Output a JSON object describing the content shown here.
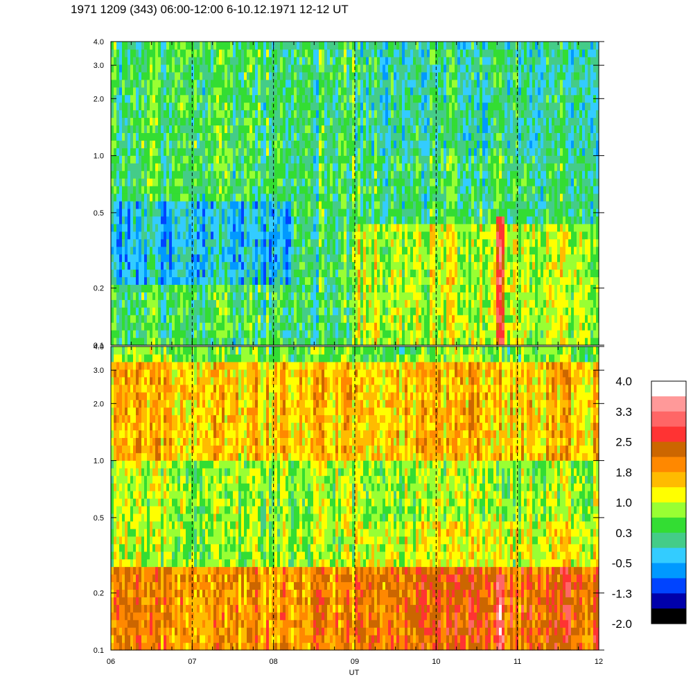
{
  "title": "1971 1209 (343) 06:00-12:00 6-10.12.1971  12-12 UT",
  "chart_data": {
    "type": "heatmap",
    "title": "1971 1209 (343) 06:00-12:00 6-10.12.1971  12-12 UT",
    "xlabel": "UT",
    "x_ticks": [
      "06",
      "07",
      "08",
      "09",
      "10",
      "11",
      "12"
    ],
    "x_range": [
      6,
      12
    ],
    "dashed_gridlines_at": [
      7,
      8,
      9,
      10,
      11
    ],
    "y_scale": "log",
    "y_range": [
      0.1,
      4.0
    ],
    "y_ticks": [
      0.1,
      0.2,
      0.5,
      1.0,
      2.0,
      3.0,
      4.0
    ],
    "y_tick_labels": [
      "0.1",
      "0.2",
      "0.5",
      "1.0",
      "2.0",
      "3.0",
      "4.0"
    ],
    "panels": [
      {
        "position": "top",
        "dominant_level": 0.3,
        "features": [
          "low values (-0.5 to -1.3) around 0.2-0.6 between 06 and 08",
          "elevated values (1.0-1.8) near 0.1-0.4 after 09",
          "peak ~2.5 at about 10.8 UT below 0.5"
        ]
      },
      {
        "position": "bottom",
        "dominant_level": 1.5,
        "features": [
          "values 1.8-2.5 below 0.3 throughout",
          "yellow-green (0.3-1.0) band between 0.3 and 1.0",
          "peak ~3.3 at about 10.8 UT below 0.25"
        ]
      }
    ],
    "colorbar": {
      "labels": [
        "4.0",
        "3.3",
        "2.5",
        "1.8",
        "1.0",
        "0.3",
        "-0.5",
        "-1.3",
        "-2.0"
      ],
      "colors_top_to_bottom": [
        "#ffffff",
        "#ff9999",
        "#ff6666",
        "#ff3333",
        "#cc6600",
        "#ff8800",
        "#ffbb00",
        "#ffff00",
        "#99ff33",
        "#33dd33",
        "#44cc88",
        "#33ccff",
        "#0099ff",
        "#0044ff",
        "#0000aa",
        "#000000"
      ]
    }
  }
}
